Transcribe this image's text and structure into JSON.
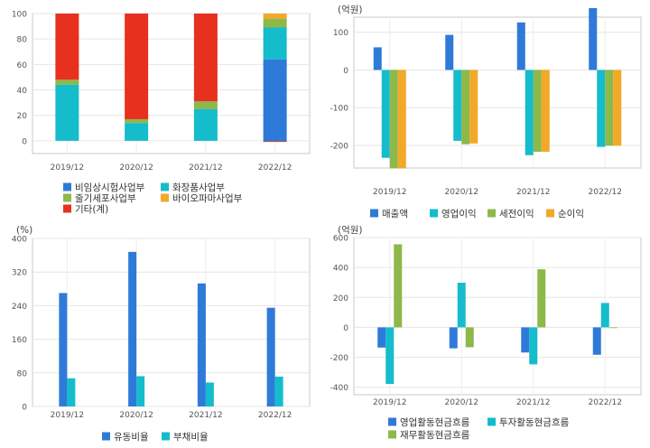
{
  "chart_data": [
    {
      "id": "segment-share",
      "type": "bar",
      "stacked": true,
      "categories": [
        "2019/12",
        "2020/12",
        "2021/12",
        "2022/12"
      ],
      "unit_label": "",
      "ylim": [
        -10,
        100
      ],
      "yticks": [
        0,
        20,
        40,
        60,
        80,
        100
      ],
      "grid": true,
      "legend_position": "bottom",
      "series": [
        {
          "name": "비임상시험사업부",
          "color": "#2e7ad8",
          "values": [
            0,
            0,
            0,
            64
          ]
        },
        {
          "name": "화장품사업부",
          "color": "#15bccb",
          "values": [
            44,
            14,
            25,
            25
          ]
        },
        {
          "name": "줄기세포사업부",
          "color": "#8db84a",
          "values": [
            4,
            3,
            6,
            7
          ]
        },
        {
          "name": "바이오파마사업부",
          "color": "#f2a927",
          "values": [
            0,
            0,
            0,
            4
          ]
        },
        {
          "name": "기타(계)",
          "color": "#e8301f",
          "values": [
            52,
            83,
            69,
            0
          ]
        }
      ]
    },
    {
      "id": "income",
      "type": "bar",
      "categories": [
        "2019/12",
        "2020/12",
        "2021/12",
        "2022/12"
      ],
      "unit_label": "(억원)",
      "ylim": [
        -260,
        140
      ],
      "yticks": [
        -200,
        -100,
        0,
        100
      ],
      "grid": true,
      "legend_position": "bottom",
      "series": [
        {
          "name": "매출액",
          "color": "#2e7ad8",
          "values": [
            60,
            93,
            126,
            164
          ]
        },
        {
          "name": "영업이익",
          "color": "#15bccb",
          "values": [
            -233,
            -188,
            -226,
            -204
          ]
        },
        {
          "name": "세전이익",
          "color": "#8db84a",
          "values": [
            -261,
            -197,
            -217,
            -201
          ]
        },
        {
          "name": "순이익",
          "color": "#f2a927",
          "values": [
            -261,
            -195,
            -217,
            -201
          ]
        }
      ]
    },
    {
      "id": "ratios",
      "type": "bar",
      "categories": [
        "2019/12",
        "2020/12",
        "2021/12",
        "2022/12"
      ],
      "unit_label": "(%)",
      "ylim": [
        0,
        400
      ],
      "yticks": [
        0,
        80,
        160,
        240,
        320,
        400
      ],
      "grid": true,
      "legend_position": "bottom",
      "series": [
        {
          "name": "유동비율",
          "color": "#2e7ad8",
          "values": [
            270,
            368,
            293,
            235
          ]
        },
        {
          "name": "부채비율",
          "color": "#15bccb",
          "values": [
            67,
            72,
            57,
            71
          ]
        }
      ]
    },
    {
      "id": "cashflow",
      "type": "bar",
      "categories": [
        "2019/12",
        "2020/12",
        "2021/12",
        "2022/12"
      ],
      "unit_label": "(억원)",
      "ylim": [
        -450,
        600
      ],
      "yticks": [
        -400,
        -200,
        0,
        200,
        400,
        600
      ],
      "grid": true,
      "legend_position": "bottom",
      "series": [
        {
          "name": "영업활동현금흐름",
          "color": "#2e7ad8",
          "values": [
            -135,
            -140,
            -168,
            -183
          ]
        },
        {
          "name": "투자활동현금흐름",
          "color": "#15bccb",
          "values": [
            -378,
            298,
            -247,
            163
          ]
        },
        {
          "name": "재무활동현금흐름",
          "color": "#8db84a",
          "values": [
            555,
            -133,
            388,
            -5
          ]
        }
      ]
    }
  ]
}
